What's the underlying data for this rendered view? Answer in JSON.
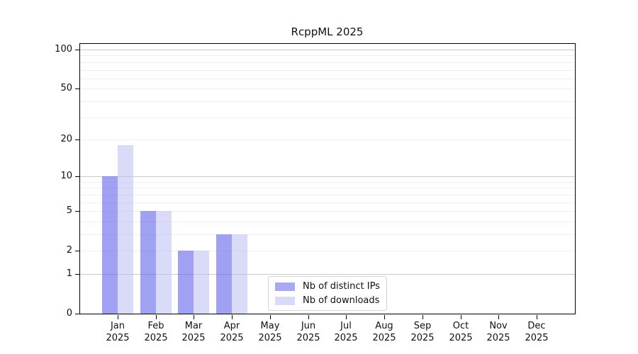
{
  "chart_data": {
    "type": "bar",
    "title": "RcppML 2025",
    "months": [
      "Jan",
      "Feb",
      "Mar",
      "Apr",
      "May",
      "Jun",
      "Jul",
      "Aug",
      "Sep",
      "Oct",
      "Nov",
      "Dec"
    ],
    "year": "2025",
    "series": [
      {
        "name": "Nb of distinct IPs",
        "color_hex": "#a9a9f1",
        "color_fill": "rgba(104,104,238,0.62)",
        "values": [
          10,
          5,
          2,
          3,
          0,
          0,
          0,
          0,
          0,
          0,
          0,
          0
        ]
      },
      {
        "name": "Nb of downloads",
        "color_hex": "#dadaf8",
        "color_fill": "rgba(187,187,244,0.55)",
        "values": [
          18,
          5,
          2,
          3,
          0,
          0,
          0,
          0,
          0,
          0,
          0,
          0
        ]
      }
    ],
    "y_axis": {
      "scale": "log10(value+1)",
      "ticks": [
        0,
        1,
        2,
        5,
        10,
        20,
        50,
        100
      ],
      "minor_gridlines": [
        2,
        3,
        4,
        5,
        6,
        7,
        8,
        9,
        20,
        30,
        40,
        50,
        60,
        70,
        80,
        90
      ],
      "major_gridlines": [
        1,
        10,
        100
      ],
      "minor_grid_color": "#eeeeee",
      "major_grid_color": "#c9c9c9",
      "ylim": [
        0,
        112
      ]
    },
    "x_axis": {
      "tick_label_line2": "2025"
    },
    "legend": {
      "position": "bottom-center",
      "entries": [
        "Nb of distinct IPs",
        "Nb of downloads"
      ]
    },
    "grid": true,
    "spine_color": "#000000",
    "background_color": "#ffffff"
  }
}
